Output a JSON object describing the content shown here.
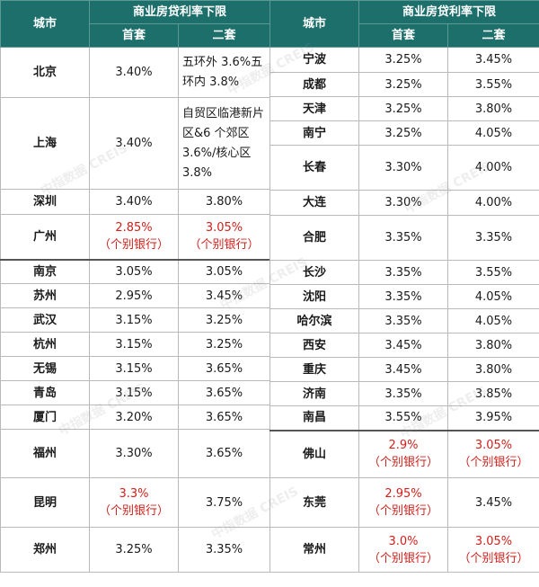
{
  "header": {
    "city_label": "城市",
    "group_label": "商业房贷利率下限",
    "first_label": "首套",
    "second_label": "二套"
  },
  "watermark_text": "中指数据 CREIS",
  "left_rows": [
    {
      "city": "北京",
      "first": "3.40%",
      "second": "五环外 3.6%五环内 3.8%"
    },
    {
      "city": "上海",
      "first": "3.40%",
      "second": "自贸区临港新片区&6 个郊区 3.6%/核心区 3.8%"
    },
    {
      "city": "深圳",
      "first": "3.40%",
      "second": "3.80%"
    },
    {
      "city": "广州",
      "first": "2.85%",
      "first_note": "（个别银行）",
      "second": "3.05%",
      "second_note": "（个别银行）"
    },
    {
      "city": "南京",
      "first": "3.05%",
      "second": "3.05%"
    },
    {
      "city": "苏州",
      "first": "2.95%",
      "second": "3.45%"
    },
    {
      "city": "武汉",
      "first": "3.15%",
      "second": "3.25%"
    },
    {
      "city": "杭州",
      "first": "3.15%",
      "second": "3.25%"
    },
    {
      "city": "无锡",
      "first": "3.15%",
      "second": "3.65%"
    },
    {
      "city": "青岛",
      "first": "3.15%",
      "second": "3.65%"
    },
    {
      "city": "厦门",
      "first": "3.20%",
      "second": "3.65%"
    },
    {
      "city": "福州",
      "first": "3.30%",
      "second": "3.65%"
    },
    {
      "city": "昆明",
      "first": "3.3%",
      "first_note": "（个别银行）",
      "second": "3.75%"
    },
    {
      "city": "郑州",
      "first": "3.25%",
      "second": "3.35%"
    }
  ],
  "right_rows": [
    {
      "city": "宁波",
      "first": "3.25%",
      "second": "3.45%"
    },
    {
      "city": "成都",
      "first": "3.25%",
      "second": "3.55%"
    },
    {
      "city": "天津",
      "first": "3.25%",
      "second": "3.80%"
    },
    {
      "city": "南宁",
      "first": "3.25%",
      "second": "4.05%"
    },
    {
      "city": "长春",
      "first": "3.30%",
      "second": "4.00%"
    },
    {
      "city": "大连",
      "first": "3.30%",
      "second": "4.00%"
    },
    {
      "city": "合肥",
      "first": "3.35%",
      "second": "3.35%"
    },
    {
      "city": "长沙",
      "first": "3.35%",
      "second": "3.55%"
    },
    {
      "city": "沈阳",
      "first": "3.35%",
      "second": "4.05%"
    },
    {
      "city": "哈尔滨",
      "first": "3.35%",
      "second": "4.05%"
    },
    {
      "city": "西安",
      "first": "3.45%",
      "second": "3.80%"
    },
    {
      "city": "重庆",
      "first": "3.45%",
      "second": "3.80%"
    },
    {
      "city": "济南",
      "first": "3.35%",
      "second": "3.85%"
    },
    {
      "city": "南昌",
      "first": "3.55%",
      "second": "3.95%"
    },
    {
      "city": "佛山",
      "first": "2.9%",
      "first_note": "（个别银行）",
      "second": "3.05%",
      "second_note": "（个别银行）"
    },
    {
      "city": "东莞",
      "first": "2.95%",
      "first_note": "（个别银行）",
      "second": "3.45%"
    },
    {
      "city": "常州",
      "first": "3.0%",
      "first_note": "（个别银行）",
      "second": "3.05%",
      "second_note": "（个别银行）"
    }
  ]
}
